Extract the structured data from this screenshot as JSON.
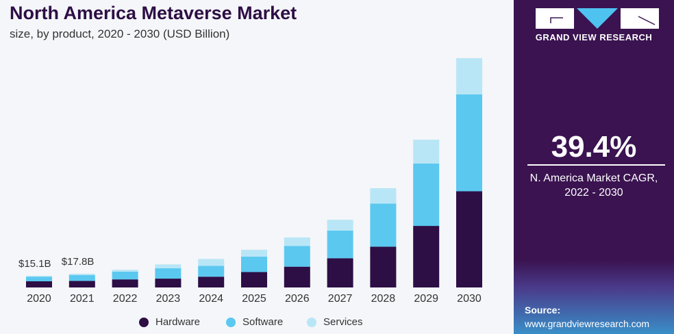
{
  "chart_data": {
    "type": "bar",
    "stacked": true,
    "title": "North America Metaverse Market",
    "subtitle": "size, by product, 2020 - 2030 (USD Billion)",
    "categories": [
      "2020",
      "2021",
      "2022",
      "2023",
      "2024",
      "2025",
      "2026",
      "2027",
      "2028",
      "2029",
      "2030"
    ],
    "series": [
      {
        "name": "Hardware",
        "color": "#2d0e45",
        "values": [
          8,
          8.5,
          10.5,
          11.5,
          14,
          20,
          27,
          38,
          53,
          80,
          125
        ]
      },
      {
        "name": "Software",
        "color": "#5bc8f0",
        "values": [
          6,
          7.5,
          10,
          13.5,
          14,
          20,
          27,
          36,
          56,
          81,
          126
        ]
      },
      {
        "name": "Services",
        "color": "#b9e6f6",
        "values": [
          1.1,
          1.8,
          2.5,
          5,
          9,
          9,
          11,
          14,
          20,
          31,
          47
        ]
      }
    ],
    "data_labels": [
      {
        "category": "2020",
        "text": "$15.1B"
      },
      {
        "category": "2021",
        "text": "$17.8B"
      }
    ],
    "ylim": [
      0,
      300
    ],
    "grid": false,
    "legend_position": "bottom"
  },
  "panel": {
    "brand": "GRAND VIEW RESEARCH",
    "cagr": "39.4%",
    "cagr_label_1": "N. America Market CAGR,",
    "cagr_label_2": "2022 - 2030",
    "source_label": "Source:",
    "source_url": "www.grandviewresearch.com"
  }
}
